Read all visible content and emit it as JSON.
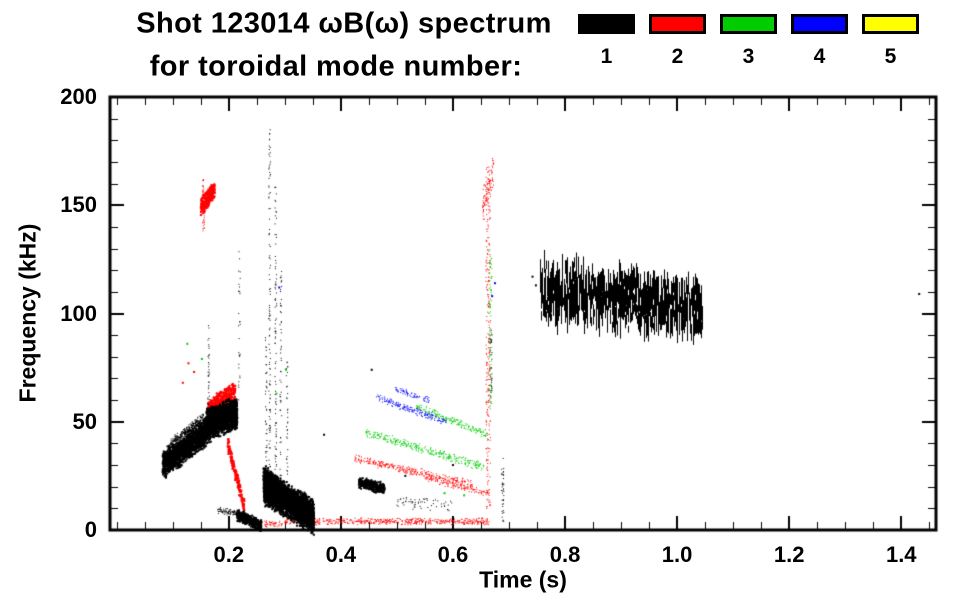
{
  "chart_data": {
    "type": "scatter",
    "title": "Shot 123014 ωB(ω) spectrum",
    "subtitle": "for toroidal mode number:",
    "xlabel": "Time (s)",
    "ylabel": "Frequency (kHz)",
    "xlim": [
      -0.012,
      1.462
    ],
    "ylim": [
      0,
      200
    ],
    "grid": false,
    "legend_position": "top-right",
    "xticks": [
      {
        "value": 0.2,
        "label": "0.2"
      },
      {
        "value": 0.4,
        "label": "0.4"
      },
      {
        "value": 0.6,
        "label": "0.6"
      },
      {
        "value": 0.8,
        "label": "0.8"
      },
      {
        "value": 1.0,
        "label": "1.0"
      },
      {
        "value": 1.2,
        "label": "1.2"
      },
      {
        "value": 1.4,
        "label": "1.4"
      }
    ],
    "yticks": [
      {
        "value": 0,
        "label": "0"
      },
      {
        "value": 50,
        "label": "50"
      },
      {
        "value": 100,
        "label": "100"
      },
      {
        "value": 150,
        "label": "150"
      },
      {
        "value": 200,
        "label": "200"
      }
    ],
    "x_minor_step": 0.05,
    "y_minor_step": 10,
    "legend": [
      {
        "label": "1",
        "mode": 1,
        "color": "#000000"
      },
      {
        "label": "2",
        "mode": 2,
        "color": "#ff0000"
      },
      {
        "label": "3",
        "mode": 3,
        "color": "#00cc00"
      },
      {
        "label": "4",
        "mode": 4,
        "color": "#0000ff"
      },
      {
        "label": "5",
        "mode": 5,
        "color": "#ffff00"
      }
    ],
    "clusters": [
      {
        "name": "n2-high-burst",
        "color": "#ff0000",
        "kind": "band",
        "t0": 0.15,
        "t1": 0.175,
        "f0": 149,
        "f1": 157,
        "spread": 3,
        "count": 230,
        "size": 2
      },
      {
        "name": "n2-high-spike",
        "color": "#ff0000",
        "kind": "vline",
        "t": 0.154,
        "f0": 138,
        "f1": 163,
        "count": 45,
        "size": 1,
        "tj": 0.002
      },
      {
        "name": "n2-over-blob",
        "color": "#ff0000",
        "kind": "band",
        "t0": 0.163,
        "t1": 0.212,
        "f0": 56,
        "f1": 64,
        "spread": 3,
        "count": 330,
        "size": 2
      },
      {
        "name": "n2-chirp-down",
        "color": "#ff0000",
        "kind": "band",
        "t0": 0.198,
        "t1": 0.228,
        "f0": 40,
        "f1": 10,
        "spread": 2.5,
        "count": 160,
        "size": 2
      },
      {
        "name": "n2-stray-dots",
        "color": "#ff0000",
        "kind": "dots",
        "size": 2,
        "points": [
          [
            0.128,
            77
          ],
          [
            0.138,
            73
          ],
          [
            0.118,
            68
          ],
          [
            0.21,
            47
          ]
        ]
      },
      {
        "name": "n2-low-band",
        "color": "#ff0000",
        "kind": "band",
        "t0": 0.3,
        "t1": 0.665,
        "f0": 4,
        "f1": 4,
        "spread": 1.1,
        "count": 540,
        "size": 1
      },
      {
        "name": "n2-low-band-early",
        "color": "#ff0000",
        "kind": "band",
        "t0": 0.24,
        "t1": 0.3,
        "f0": 3,
        "f1": 3,
        "spread": 1.0,
        "count": 60,
        "size": 1
      },
      {
        "name": "n2-cascade",
        "color": "#ff0000",
        "kind": "band",
        "t0": 0.425,
        "t1": 0.635,
        "f0": 33,
        "f1": 21,
        "spread": 1.4,
        "count": 310,
        "size": 1
      },
      {
        "name": "n2-cascade-2",
        "color": "#ff0000",
        "kind": "band",
        "t0": 0.55,
        "t1": 0.665,
        "f0": 24,
        "f1": 17,
        "spread": 1.2,
        "count": 130,
        "size": 1
      },
      {
        "name": "n2-crash-spike",
        "color": "#ff0000",
        "kind": "vline",
        "t": 0.662,
        "f0": 10,
        "f1": 168,
        "count": 240,
        "size": 1,
        "tj": 0.004
      },
      {
        "name": "n2-crash-tip",
        "color": "#ff0000",
        "kind": "band",
        "t0": 0.653,
        "t1": 0.673,
        "f0": 148,
        "f1": 167,
        "spread": 6,
        "count": 90,
        "size": 1
      },
      {
        "name": "n3-stray-dots",
        "color": "#00cc00",
        "kind": "dots",
        "size": 2,
        "points": [
          [
            0.126,
            86
          ],
          [
            0.152,
            79
          ],
          [
            0.285,
            63
          ],
          [
            0.302,
            74
          ],
          [
            0.585,
            17
          ],
          [
            0.62,
            16
          ]
        ]
      },
      {
        "name": "n3-cascade",
        "color": "#00cc00",
        "kind": "band",
        "t0": 0.445,
        "t1": 0.655,
        "f0": 45,
        "f1": 29,
        "spread": 1.4,
        "count": 310,
        "size": 1
      },
      {
        "name": "n3-cascade-2",
        "color": "#00cc00",
        "kind": "band",
        "t0": 0.535,
        "t1": 0.662,
        "f0": 57,
        "f1": 44,
        "spread": 1.3,
        "count": 180,
        "size": 1
      },
      {
        "name": "n3-crash-spike",
        "color": "#00cc00",
        "kind": "vline",
        "t": 0.666,
        "f0": 55,
        "f1": 130,
        "count": 95,
        "size": 1,
        "tj": 0.003
      },
      {
        "name": "n4-cascade",
        "color": "#0000ff",
        "kind": "band",
        "t0": 0.462,
        "t1": 0.588,
        "f0": 61,
        "f1": 50,
        "spread": 1.3,
        "count": 170,
        "size": 1
      },
      {
        "name": "n4-cascade-2",
        "color": "#0000ff",
        "kind": "band",
        "t0": 0.497,
        "t1": 0.558,
        "f0": 65,
        "f1": 60,
        "spread": 1.0,
        "count": 65,
        "size": 1
      },
      {
        "name": "n4-stray-dots",
        "color": "#0000ff",
        "kind": "dots",
        "size": 2,
        "points": [
          [
            0.675,
            114
          ],
          [
            0.67,
            108
          ],
          [
            0.29,
            112
          ]
        ]
      },
      {
        "name": "n1-rise",
        "color": "#000000",
        "kind": "band",
        "t0": 0.082,
        "t1": 0.168,
        "f0": 30,
        "f1": 47,
        "spread": 4.5,
        "count": 1700,
        "size": 2
      },
      {
        "name": "n1-saturate",
        "color": "#000000",
        "kind": "band",
        "t0": 0.16,
        "t1": 0.215,
        "f0": 49,
        "f1": 54,
        "spread": 5,
        "count": 1500,
        "size": 2
      },
      {
        "name": "n1-upper-wisp",
        "color": "#000000",
        "kind": "band",
        "t0": 0.095,
        "t1": 0.155,
        "f0": 40,
        "f1": 52,
        "spread": 1.5,
        "count": 240,
        "size": 1
      },
      {
        "name": "n1-drop",
        "color": "#000000",
        "kind": "band",
        "t0": 0.215,
        "t1": 0.258,
        "f0": 7,
        "f1": 2,
        "spread": 2,
        "count": 350,
        "size": 2
      },
      {
        "name": "n1-low-line",
        "color": "#000000",
        "kind": "band",
        "t0": 0.18,
        "t1": 0.215,
        "f0": 9,
        "f1": 8,
        "spread": 1,
        "count": 90,
        "size": 1
      },
      {
        "name": "n1-second-blob",
        "color": "#000000",
        "kind": "band",
        "t0": 0.262,
        "t1": 0.352,
        "f0": 20,
        "f1": 6,
        "spread": 5.5,
        "count": 2600,
        "size": 2
      },
      {
        "name": "n1-second-blob-top",
        "color": "#000000",
        "kind": "band",
        "t0": 0.262,
        "t1": 0.3,
        "f0": 25,
        "f1": 15,
        "spread": 4,
        "count": 600,
        "size": 2
      },
      {
        "name": "n1-spike-a",
        "color": "#000000",
        "kind": "vline",
        "t": 0.266,
        "f0": 12,
        "f1": 90,
        "count": 60,
        "size": 1,
        "tj": 0.0015
      },
      {
        "name": "n1-spike-b",
        "color": "#000000",
        "kind": "vline",
        "t": 0.272,
        "f0": 15,
        "f1": 186,
        "count": 110,
        "size": 1,
        "tj": 0.0015
      },
      {
        "name": "n1-spike-c",
        "color": "#000000",
        "kind": "vline",
        "t": 0.283,
        "f0": 12,
        "f1": 160,
        "count": 90,
        "size": 1,
        "tj": 0.0015
      },
      {
        "name": "n1-spike-d",
        "color": "#000000",
        "kind": "vline",
        "t": 0.292,
        "f0": 10,
        "f1": 120,
        "count": 60,
        "size": 1,
        "tj": 0.0015
      },
      {
        "name": "n1-spike-e",
        "color": "#000000",
        "kind": "vline",
        "t": 0.303,
        "f0": 8,
        "f1": 78,
        "count": 40,
        "size": 1,
        "tj": 0.0015
      },
      {
        "name": "n1-spike-early",
        "color": "#000000",
        "kind": "vline",
        "t": 0.163,
        "f0": 55,
        "f1": 95,
        "count": 35,
        "size": 1,
        "tj": 0.0015
      },
      {
        "name": "n1-spike-mid",
        "color": "#000000",
        "kind": "vline",
        "t": 0.218,
        "f0": 60,
        "f1": 130,
        "count": 30,
        "size": 1,
        "tj": 0.0015
      },
      {
        "name": "n1-mid-cluster",
        "color": "#000000",
        "kind": "band",
        "t0": 0.432,
        "t1": 0.478,
        "f0": 22,
        "f1": 19,
        "spread": 1.8,
        "count": 280,
        "size": 2
      },
      {
        "name": "n1-low-specks",
        "color": "#000000",
        "kind": "band",
        "t0": 0.5,
        "t1": 0.6,
        "f0": 13,
        "f1": 11,
        "spread": 2,
        "count": 60,
        "size": 1
      },
      {
        "name": "n1-eps-band",
        "color": "#000000",
        "kind": "dashband",
        "t0": 0.755,
        "t1": 1.045,
        "c0": 111,
        "c1": 102,
        "hw0": 16,
        "hw1": 14,
        "count": 850,
        "dmin": 3,
        "dmax": 12
      },
      {
        "name": "n1-post-spike",
        "color": "#000000",
        "kind": "vline",
        "t": 0.688,
        "f0": 4,
        "f1": 34,
        "count": 40,
        "size": 1,
        "tj": 0.002
      },
      {
        "name": "n1-crash-spike",
        "color": "#000000",
        "kind": "vline",
        "t": 0.667,
        "f0": 60,
        "f1": 95,
        "count": 30,
        "size": 1,
        "tj": 0.002
      },
      {
        "name": "n1-stray-dots",
        "color": "#000000",
        "kind": "dots",
        "size": 2,
        "points": [
          [
            1.432,
            109
          ],
          [
            0.742,
            117
          ],
          [
            0.748,
            113
          ],
          [
            0.455,
            74
          ],
          [
            0.37,
            44
          ],
          [
            0.6,
            30
          ],
          [
            0.515,
            25
          ]
        ]
      }
    ]
  }
}
